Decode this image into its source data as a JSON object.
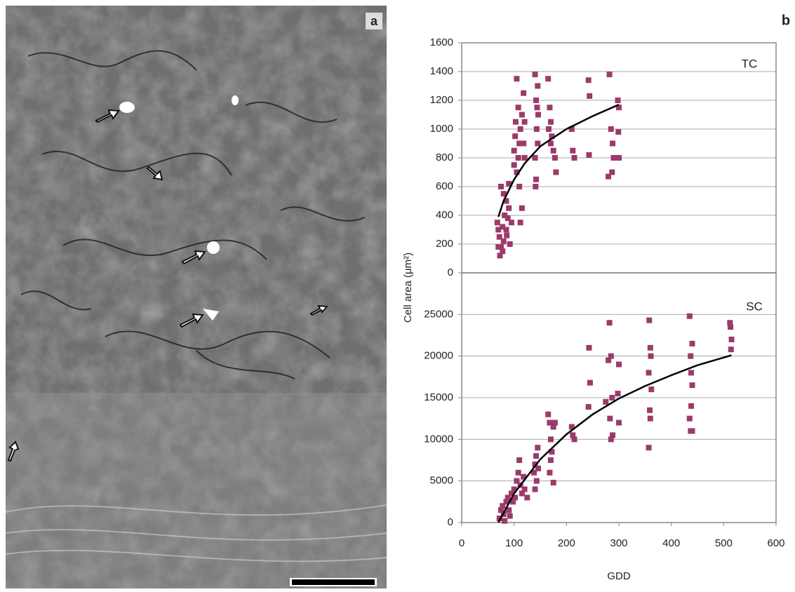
{
  "figure": {
    "panel_labels": [
      "a",
      "b"
    ],
    "xlabel": "GDD",
    "ylabel": "Cell area (μm²)"
  },
  "chart_data": [
    {
      "type": "scatter",
      "annotation": "TC",
      "xlim": [
        0,
        600
      ],
      "ylim": [
        0,
        1600
      ],
      "yticks": [
        0,
        200,
        400,
        600,
        800,
        1000,
        1200,
        1400,
        1600
      ],
      "grid": true,
      "series": [
        {
          "color": "#9b3a6b",
          "x": [
            68,
            70,
            72,
            75,
            73,
            78,
            80,
            82,
            85,
            88,
            90,
            75,
            80,
            85,
            90,
            92,
            95,
            70,
            78,
            86,
            100,
            102,
            105,
            108,
            110,
            112,
            115,
            118,
            120,
            105,
            110,
            112,
            115,
            100,
            118,
            108,
            120,
            103,
            140,
            142,
            145,
            143,
            145,
            140,
            142,
            146,
            144,
            141,
            165,
            168,
            170,
            172,
            175,
            178,
            166,
            180,
            170,
            210,
            212,
            215,
            242,
            244,
            243,
            282,
            285,
            288,
            290,
            287,
            280,
            298,
            300,
            299,
            300
          ],
          "values": [
            350,
            300,
            250,
            180,
            120,
            150,
            220,
            400,
            300,
            380,
            450,
            600,
            550,
            500,
            620,
            200,
            350,
            180,
            320,
            260,
            850,
            950,
            700,
            800,
            900,
            1000,
            1100,
            1250,
            1050,
            1350,
            600,
            350,
            450,
            750,
            900,
            1150,
            800,
            1050,
            1380,
            1200,
            1300,
            1000,
            900,
            800,
            650,
            1100,
            1150,
            600,
            1350,
            1150,
            1050,
            950,
            850,
            800,
            1000,
            700,
            900,
            1000,
            850,
            800,
            1340,
            1230,
            820,
            1380,
            1000,
            900,
            800,
            700,
            670,
            1200,
            1150,
            980,
            800
          ]
        }
      ],
      "fit": {
        "color": "#000000",
        "x": [
          70,
          80,
          100,
          120,
          150,
          200,
          250,
          300
        ],
        "values": [
          390,
          500,
          650,
          760,
          880,
          1000,
          1090,
          1170
        ]
      }
    },
    {
      "type": "scatter",
      "annotation": "SC",
      "xlim": [
        0,
        600
      ],
      "ylim": [
        0,
        30000
      ],
      "xticks": [
        0,
        100,
        200,
        300,
        400,
        500,
        600
      ],
      "yticks": [
        0,
        5000,
        10000,
        15000,
        20000,
        25000
      ],
      "grid": true,
      "series": [
        {
          "color": "#9b3a6b",
          "x": [
            72,
            75,
            78,
            80,
            85,
            88,
            90,
            95,
            98,
            100,
            102,
            105,
            108,
            110,
            112,
            115,
            118,
            120,
            125,
            92,
            82,
            138,
            140,
            142,
            145,
            143,
            146,
            140,
            165,
            168,
            170,
            172,
            175,
            178,
            168,
            175,
            170,
            210,
            212,
            215,
            243,
            245,
            242,
            280,
            282,
            285,
            287,
            283,
            288,
            285,
            300,
            298,
            300,
            275,
            358,
            360,
            357,
            362,
            359,
            360,
            357,
            361,
            435,
            440,
            437,
            438,
            440,
            438,
            435,
            437,
            440,
            513,
            515,
            514,
            512
          ],
          "values": [
            500,
            1500,
            2000,
            1000,
            2500,
            3000,
            1500,
            3500,
            2500,
            4000,
            3000,
            5000,
            6000,
            7500,
            4500,
            3500,
            5500,
            4000,
            3000,
            800,
            200,
            6000,
            7000,
            8000,
            9000,
            5000,
            6500,
            4000,
            13000,
            12000,
            10000,
            8500,
            11500,
            12000,
            6000,
            4800,
            7500,
            11500,
            10500,
            10000,
            21000,
            16800,
            13900,
            19500,
            24000,
            20000,
            15000,
            12500,
            10500,
            10000,
            19000,
            15500,
            12000,
            14500,
            24300,
            21000,
            18000,
            16000,
            13500,
            12500,
            9000,
            20000,
            24800,
            21500,
            20000,
            18000,
            16500,
            14000,
            12500,
            11000,
            11000,
            23500,
            22000,
            20800,
            24000
          ]
        }
      ],
      "fit": {
        "color": "#000000",
        "x": [
          70,
          100,
          150,
          200,
          250,
          300,
          350,
          400,
          450,
          515
        ],
        "values": [
          0,
          3500,
          7600,
          10600,
          13000,
          14900,
          16400,
          17700,
          18900,
          20100
        ]
      }
    }
  ]
}
